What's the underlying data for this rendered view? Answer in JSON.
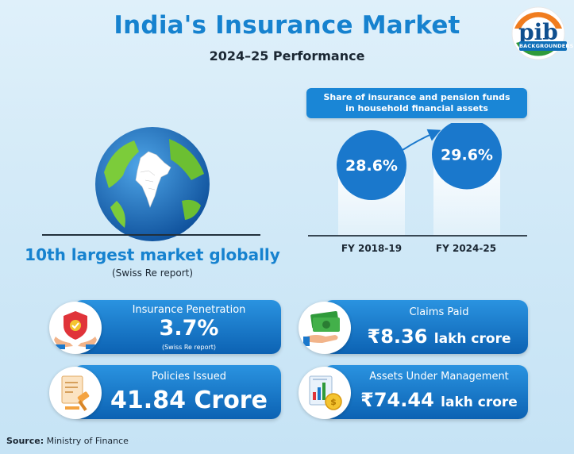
{
  "header": {
    "title": "India's Insurance Market",
    "subtitle": "2024–25 Performance",
    "logo_text": "pib",
    "logo_badge": "BACKGROUNDERS"
  },
  "ranking": {
    "headline": "10th largest market globally",
    "source": "(Swiss Re report)"
  },
  "share_chart": {
    "title": "Share of insurance and pension funds in household financial assets",
    "title_line1": "Share of insurance and pension funds",
    "title_line2": "in household financial assets",
    "chart_data": {
      "type": "bar",
      "categories": [
        "FY 2018-19",
        "FY 2024-25"
      ],
      "values": [
        28.6,
        29.6
      ],
      "value_labels": [
        "28.6%",
        "29.6%"
      ]
    }
  },
  "cards": {
    "penetration": {
      "heading": "Insurance Penetration",
      "value": "3.7%",
      "note": "(Swiss Re report)",
      "icon": "shield-hands-icon"
    },
    "claims": {
      "heading": "Claims Paid",
      "value": "₹8.36",
      "unit": "lakh crore",
      "icon": "cash-hand-icon"
    },
    "policies": {
      "heading": "Policies Issued",
      "value": "41.84 Crore",
      "icon": "document-gavel-icon"
    },
    "aum": {
      "heading": "Assets Under Management",
      "value": "₹74.44",
      "unit": "lakh crore",
      "icon": "report-coin-icon"
    }
  },
  "footer": {
    "source_label": "Source:",
    "source_value": "Ministry of Finance"
  },
  "colors": {
    "accent": "#1682cf",
    "card": "#1a78cc",
    "logo_orange": "#f07c1e",
    "logo_green": "#2f9a3a"
  }
}
